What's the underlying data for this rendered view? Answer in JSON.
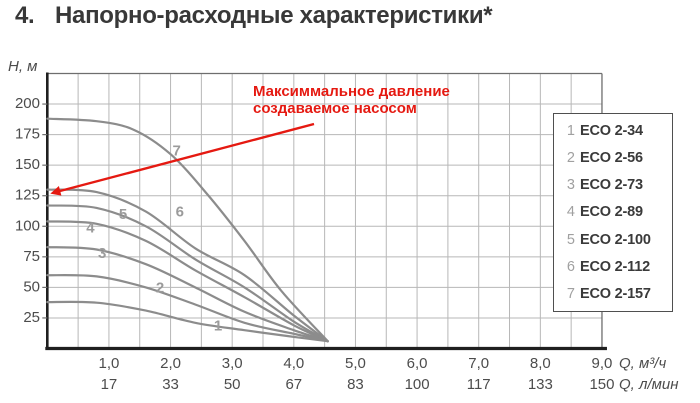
{
  "title": {
    "number": "4.",
    "text": "Напорно-расходные характеристики*"
  },
  "annotation": {
    "line1": "Максиммальное давление",
    "line2": "создаваемое насосом"
  },
  "colors": {
    "accent": "#e51911",
    "curve": "#8c8c8c",
    "grid": "#b7b7b7",
    "frame": "#6e6e6e",
    "axis": "#1f1f1f",
    "tick_text": "#4c4c4c",
    "curve_label": "#9b9b9b",
    "legend_number": "#a0a0a0",
    "legend_label": "#3a3a3a",
    "title_text": "#383838"
  },
  "chart_data": {
    "type": "line",
    "title": "Напорно-расходные характеристики*",
    "ylabel": "H, м",
    "xlabel_primary": "Q, м³/ч",
    "xlabel_secondary": "Q, л/мин",
    "xlim": [
      0,
      9
    ],
    "ylim": [
      0,
      225
    ],
    "grid": {
      "x_step": 0.5,
      "y_step": 25
    },
    "legend_position": "right inside",
    "y_ticks": [
      25,
      50,
      75,
      100,
      125,
      150,
      175,
      200
    ],
    "x_ticks": [
      {
        "q": 1,
        "m3h": "1,0",
        "lmin": "17"
      },
      {
        "q": 2,
        "m3h": "2,0",
        "lmin": "33"
      },
      {
        "q": 3,
        "m3h": "3,0",
        "lmin": "50"
      },
      {
        "q": 4,
        "m3h": "4,0",
        "lmin": "67"
      },
      {
        "q": 5,
        "m3h": "5,0",
        "lmin": "83"
      },
      {
        "q": 6,
        "m3h": "6,0",
        "lmin": "100"
      },
      {
        "q": 7,
        "m3h": "7,0",
        "lmin": "117"
      },
      {
        "q": 8,
        "m3h": "8,0",
        "lmin": "133"
      },
      {
        "q": 9,
        "m3h": "9,0",
        "lmin": "150"
      }
    ],
    "convergence_point": [
      4.5,
      6
    ],
    "series": [
      {
        "num": "1",
        "name": "ECO 2-34",
        "points": [
          [
            0,
            38
          ],
          [
            0.8,
            37.5
          ],
          [
            1.6,
            31
          ],
          [
            2.4,
            21
          ],
          [
            3.2,
            15
          ],
          [
            4,
            9.5
          ],
          [
            4.55,
            6
          ]
        ],
        "label_at": [
          2.77,
          19
        ]
      },
      {
        "num": "2",
        "name": "ECO 2-56",
        "points": [
          [
            0,
            60
          ],
          [
            0.8,
            59
          ],
          [
            1.6,
            50
          ],
          [
            2.4,
            36
          ],
          [
            3.2,
            21
          ],
          [
            4,
            12
          ],
          [
            4.55,
            6
          ]
        ],
        "label_at": [
          1.83,
          50
        ]
      },
      {
        "num": "3",
        "name": "ECO 2-73",
        "points": [
          [
            0,
            83
          ],
          [
            0.8,
            81
          ],
          [
            1.6,
            69
          ],
          [
            2.4,
            50
          ],
          [
            3.2,
            30
          ],
          [
            4,
            15
          ],
          [
            4.55,
            6
          ]
        ],
        "label_at": [
          0.89,
          78
        ]
      },
      {
        "num": "4",
        "name": "ECO 2-89",
        "points": [
          [
            0,
            104
          ],
          [
            0.8,
            102
          ],
          [
            1.6,
            88
          ],
          [
            2.4,
            64
          ],
          [
            3.2,
            42
          ],
          [
            4,
            19
          ],
          [
            4.55,
            6
          ]
        ],
        "label_at": [
          0.7,
          99
        ]
      },
      {
        "num": "5",
        "name": "ECO 2-100",
        "points": [
          [
            0,
            117
          ],
          [
            0.8,
            115
          ],
          [
            1.6,
            100
          ],
          [
            2.4,
            73
          ],
          [
            3.2,
            50
          ],
          [
            4,
            22
          ],
          [
            4.55,
            6
          ]
        ],
        "label_at": [
          1.23,
          110
        ]
      },
      {
        "num": "6",
        "name": "ECO 2-112",
        "points": [
          [
            0,
            130
          ],
          [
            0.8,
            128
          ],
          [
            1.6,
            112
          ],
          [
            2.4,
            82
          ],
          [
            3.2,
            60
          ],
          [
            4,
            27
          ],
          [
            4.55,
            6
          ]
        ],
        "label_at": [
          2.15,
          112
        ]
      },
      {
        "num": "7",
        "name": "ECO 2-157",
        "points": [
          [
            0,
            188
          ],
          [
            0.8,
            186
          ],
          [
            1.4,
            179
          ],
          [
            2,
            159
          ],
          [
            2.6,
            126
          ],
          [
            3.2,
            88
          ],
          [
            3.8,
            47
          ],
          [
            4.55,
            6
          ]
        ],
        "label_at": [
          2.1,
          162
        ]
      }
    ]
  }
}
